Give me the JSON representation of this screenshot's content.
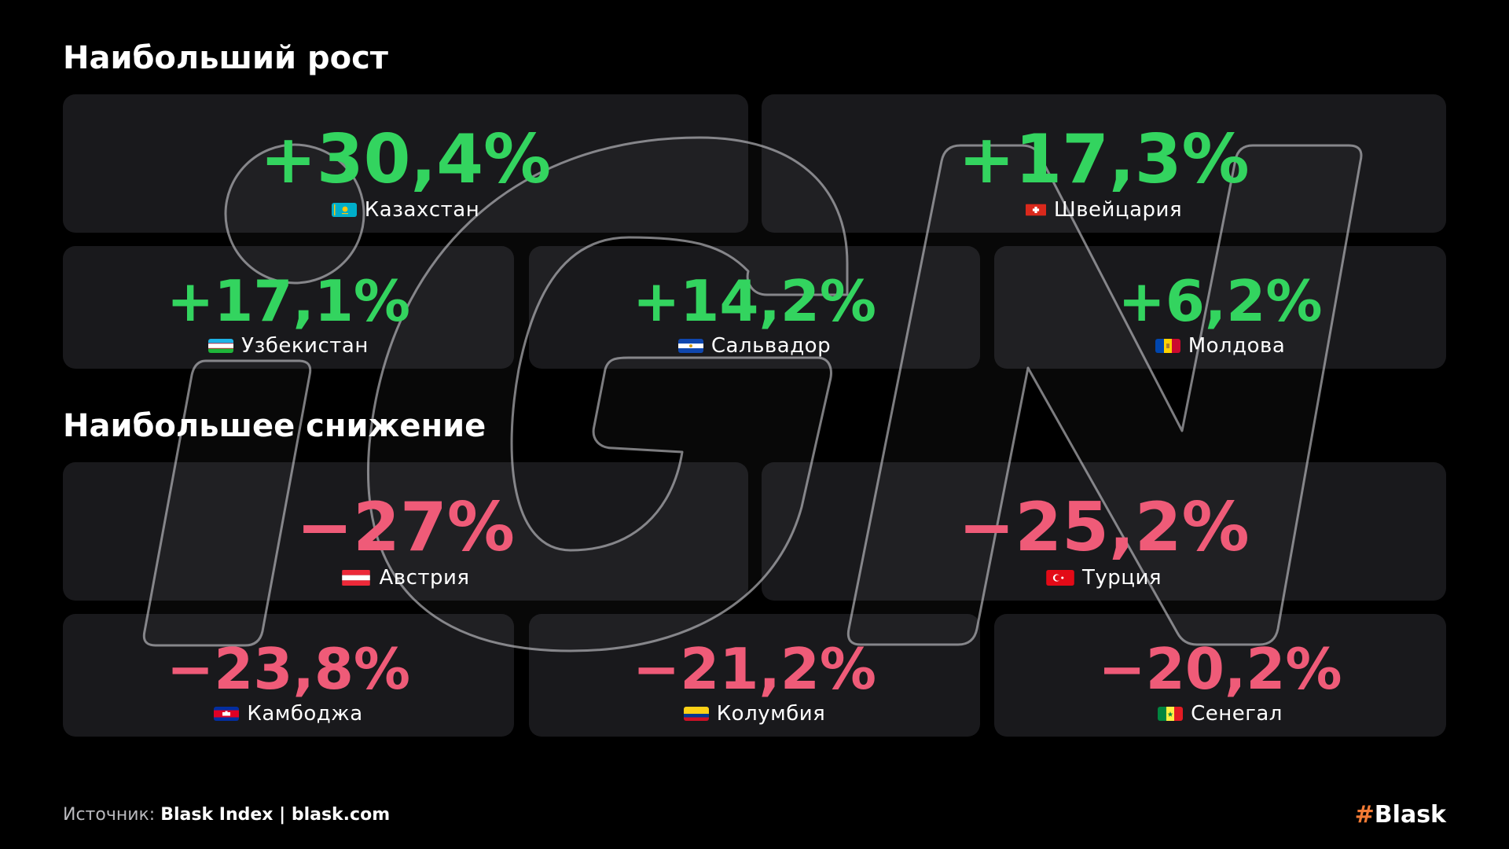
{
  "colors": {
    "background": "#000000",
    "card": "#19191c",
    "growth": "#33d45f",
    "decline": "#ef5b78",
    "brand_hash": "#f37b35"
  },
  "growth": {
    "title": "Наибольший рост",
    "items": [
      {
        "value": "+30,4%",
        "country": "Казахстан",
        "flag": "kazakhstan-flag-icon"
      },
      {
        "value": "+17,3%",
        "country": "Швейцария",
        "flag": "switzerland-flag-icon"
      },
      {
        "value": "+17,1%",
        "country": "Узбекистан",
        "flag": "uzbekistan-flag-icon"
      },
      {
        "value": "+14,2%",
        "country": "Сальвадор",
        "flag": "el-salvador-flag-icon"
      },
      {
        "value": "+6,2%",
        "country": "Молдова",
        "flag": "moldova-flag-icon"
      }
    ]
  },
  "decline": {
    "title": "Наибольшее снижение",
    "items": [
      {
        "value": "−27%",
        "country": "Австрия",
        "flag": "austria-flag-icon"
      },
      {
        "value": "−25,2%",
        "country": "Турция",
        "flag": "turkey-flag-icon"
      },
      {
        "value": "−23,8%",
        "country": "Камбоджа",
        "flag": "cambodia-flag-icon"
      },
      {
        "value": "−21,2%",
        "country": "Колумбия",
        "flag": "colombia-flag-icon"
      },
      {
        "value": "−20,2%",
        "country": "Сенегал",
        "flag": "senegal-flag-icon"
      }
    ]
  },
  "footer": {
    "source_prefix": "Источник:",
    "source_value": "Blask Index | blask.com",
    "brand_hash": "#",
    "brand_name": "Blask"
  }
}
